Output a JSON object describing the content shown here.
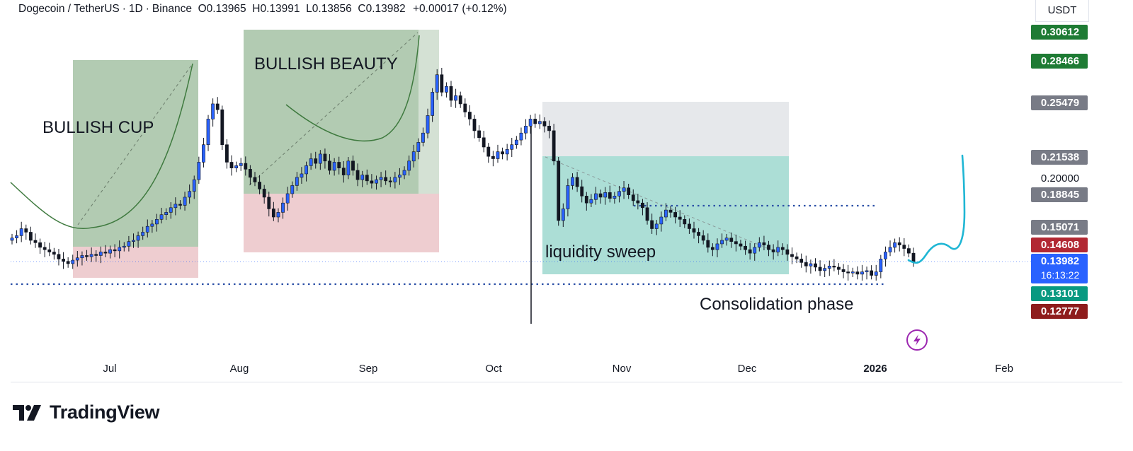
{
  "header": {
    "symbol": "Dogecoin / TetherUS",
    "interval": "1D",
    "exchange": "Binance",
    "open": "O0.13965",
    "high": "H0.13991",
    "low": "L0.13856",
    "close": "C0.13982",
    "change": "+0.00017 (+0.12%)"
  },
  "currency": "USDT",
  "logo": {
    "text": "TradingView"
  },
  "colors": {
    "up": "#2962ff",
    "down": "#131722",
    "green_zone": "#7fa87f",
    "red_zone": "#e8bcc0",
    "teal_zone": "#7fcdc0",
    "grey_zone": "#d6d9dd",
    "dotted": "#2a4fa6",
    "projection": "#1fb6d4"
  },
  "chart_data": {
    "type": "candlestick",
    "x_ticks": [
      "Jul",
      "Aug",
      "Sep",
      "Oct",
      "Nov",
      "Dec",
      "2026",
      "Feb"
    ],
    "price_labels": [
      {
        "value": 0.30612,
        "text": "0.30612",
        "style": "green"
      },
      {
        "value": 0.28466,
        "text": "0.28466",
        "style": "green"
      },
      {
        "value": 0.25479,
        "text": "0.25479",
        "style": "grey"
      },
      {
        "value": 0.21538,
        "text": "0.21538",
        "style": "grey"
      },
      {
        "value": 0.2,
        "text": "0.20000",
        "style": "plain"
      },
      {
        "value": 0.18845,
        "text": "0.18845",
        "style": "grey"
      },
      {
        "value": 0.15071,
        "text": "0.15071",
        "style": "grey"
      },
      {
        "value": 0.14608,
        "text": "0.14608",
        "style": "red"
      },
      {
        "value": 0.13982,
        "text": "0.13982",
        "style": "blue",
        "sub": "16:13:22"
      },
      {
        "value": 0.13101,
        "text": "0.13101",
        "style": "teal"
      },
      {
        "value": 0.12777,
        "text": "0.12777",
        "style": "darkred"
      }
    ],
    "annotations": [
      {
        "text": "BULLISH CUP"
      },
      {
        "text": "BULLISH BEAUTY"
      },
      {
        "text": "liquidity sweep"
      },
      {
        "text": "Consolidation phase"
      }
    ],
    "close_series": [
      0.16,
      0.162,
      0.168,
      0.165,
      0.158,
      0.156,
      0.152,
      0.15,
      0.148,
      0.146,
      0.142,
      0.14,
      0.138,
      0.141,
      0.143,
      0.145,
      0.144,
      0.146,
      0.145,
      0.148,
      0.147,
      0.15,
      0.149,
      0.152,
      0.153,
      0.157,
      0.158,
      0.162,
      0.165,
      0.17,
      0.172,
      0.176,
      0.18,
      0.182,
      0.186,
      0.189,
      0.188,
      0.195,
      0.2,
      0.21,
      0.225,
      0.24,
      0.262,
      0.275,
      0.27,
      0.24,
      0.225,
      0.22,
      0.222,
      0.224,
      0.219,
      0.212,
      0.208,
      0.202,
      0.195,
      0.185,
      0.178,
      0.182,
      0.19,
      0.198,
      0.205,
      0.212,
      0.215,
      0.222,
      0.228,
      0.224,
      0.232,
      0.226,
      0.218,
      0.225,
      0.22,
      0.214,
      0.226,
      0.218,
      0.21,
      0.214,
      0.209,
      0.207,
      0.21,
      0.212,
      0.209,
      0.208,
      0.212,
      0.214,
      0.218,
      0.226,
      0.234,
      0.242,
      0.25,
      0.265,
      0.285,
      0.3,
      0.285,
      0.29,
      0.278,
      0.282,
      0.275,
      0.268,
      0.262,
      0.252,
      0.246,
      0.238,
      0.23,
      0.228,
      0.234,
      0.232,
      0.236,
      0.24,
      0.244,
      0.25,
      0.256,
      0.262,
      0.258,
      0.26,
      0.256,
      0.252,
      0.226,
      0.175,
      0.185,
      0.205,
      0.212,
      0.204,
      0.196,
      0.19,
      0.193,
      0.198,
      0.195,
      0.199,
      0.194,
      0.196,
      0.2,
      0.203,
      0.197,
      0.192,
      0.19,
      0.186,
      0.175,
      0.168,
      0.172,
      0.178,
      0.184,
      0.182,
      0.178,
      0.176,
      0.172,
      0.168,
      0.165,
      0.162,
      0.158,
      0.152,
      0.15,
      0.155,
      0.158,
      0.16,
      0.157,
      0.155,
      0.153,
      0.15,
      0.147,
      0.152,
      0.156,
      0.154,
      0.15,
      0.148,
      0.152,
      0.15,
      0.146,
      0.144,
      0.142,
      0.139,
      0.136,
      0.138,
      0.135,
      0.132,
      0.134,
      0.136,
      0.135,
      0.133,
      0.131,
      0.13,
      0.131,
      0.129,
      0.131,
      0.132,
      0.128,
      0.131,
      0.142,
      0.148,
      0.152,
      0.156,
      0.154,
      0.151,
      0.147,
      0.1398
    ],
    "projection_path": "wave up to ~0.215 after current price"
  }
}
